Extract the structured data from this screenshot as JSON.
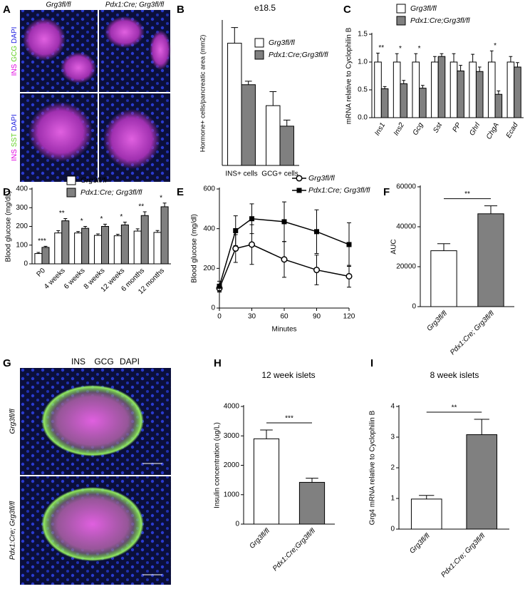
{
  "panel_letters": [
    "A",
    "B",
    "C",
    "D",
    "E",
    "F",
    "G",
    "H",
    "I"
  ],
  "figures": [
    {
      "columns": [
        "Grg3fl/fl",
        "Pdx1:Cre; Grg3fl/fl"
      ],
      "rows": [
        [
          "INS",
          "GCG",
          "DAPI"
        ],
        [
          "INS",
          "SST",
          "DAPI"
        ]
      ]
    },
    {
      "stains": [
        "INS",
        "GCG",
        "DAPI"
      ],
      "rows": [
        "Grg3fl/fl",
        "Pdx1:Cre; Grg3fl/fl"
      ]
    }
  ],
  "chart_data": [
    {
      "type": "bar",
      "title": "e18.5",
      "ylabel": "Hormone+ cells/pancreatic area (mm2)",
      "categories": [
        "INS+ cells",
        "GCG+ cells"
      ],
      "ylim": [
        0,
        330
      ],
      "series": [
        {
          "name": "Grg3fl/fl",
          "color": "#ffffff",
          "values": [
            280,
            137
          ],
          "errors": [
            36,
            32
          ]
        },
        {
          "name": "Pdx1:Cre;Grg3fl/fl",
          "color": "#808080",
          "values": [
            185,
            90
          ],
          "errors": [
            8,
            14
          ]
        }
      ]
    },
    {
      "type": "bar",
      "ylabel": "mRNA relative to Cyclophilin B",
      "categories": [
        "Ins1",
        "Ins2",
        "Gcg",
        "Sst",
        "PP",
        "Ghrl",
        "ChgA",
        "Ecad"
      ],
      "ylim": [
        0,
        1.5
      ],
      "yticks": [
        {
          "value": 0,
          "label": "0.0"
        },
        0.5,
        {
          "value": 1,
          "label": "1.0"
        },
        1.5
      ],
      "series": [
        {
          "name": "Grg3fl/fl",
          "color": "#ffffff",
          "values": [
            1.0,
            1.0,
            1.0,
            1.0,
            1.0,
            1.0,
            1.0,
            1.0
          ],
          "errors": [
            0.16,
            0.15,
            0.15,
            0.1,
            0.15,
            0.14,
            0.2,
            0.1
          ]
        },
        {
          "name": "Pdx1:Cre;Grg3fl/fl",
          "color": "#808080",
          "values": [
            0.52,
            0.61,
            0.53,
            1.1,
            0.84,
            0.83,
            0.42,
            0.91
          ],
          "errors": [
            0.04,
            0.06,
            0.05,
            0.05,
            0.1,
            0.08,
            0.06,
            0.08
          ]
        }
      ],
      "annotations": [
        "**",
        "*",
        "*",
        null,
        null,
        null,
        "*",
        null
      ]
    },
    {
      "type": "bar",
      "ylabel": "Blood glucose (mg/dL)",
      "categories": [
        "P0",
        "4 weeks",
        "6 weeks",
        "8 weeks",
        "12 weeks",
        "6 months",
        "12 months"
      ],
      "ylim": [
        0,
        400
      ],
      "yticks": [
        0,
        100,
        200,
        300,
        400
      ],
      "series": [
        {
          "name": "Grg3fl/fl",
          "color": "#ffffff",
          "values": [
            55,
            165,
            165,
            152,
            150,
            175,
            168
          ],
          "errors": [
            6,
            12,
            8,
            8,
            8,
            12,
            10
          ]
        },
        {
          "name": "Pdx1:Cre; Grg3fl/fl",
          "color": "#808080",
          "values": [
            88,
            230,
            190,
            200,
            208,
            258,
            305
          ],
          "errors": [
            6,
            12,
            10,
            12,
            15,
            20,
            20
          ]
        }
      ],
      "annotations": [
        "***",
        "**",
        "*",
        "*",
        "*",
        "**",
        "*"
      ]
    },
    {
      "type": "line",
      "ylabel": "Blood glucose (mg/dl)",
      "xlabel": "Minutes",
      "x": [
        0,
        15,
        30,
        60,
        90,
        120
      ],
      "xlim": [
        0,
        120
      ],
      "xticks": [
        0,
        30,
        60,
        90,
        120
      ],
      "ylim": [
        0,
        600
      ],
      "yticks": [
        0,
        200,
        400,
        600
      ],
      "series": [
        {
          "name": "Grg3fl/fl",
          "color": "#000000",
          "marker": "circle",
          "values": [
            100,
            300,
            320,
            245,
            192,
            160
          ],
          "errors": [
            20,
            70,
            100,
            90,
            75,
            55
          ]
        },
        {
          "name": "Pdx1:Cre; Grg3fl/fl",
          "color": "#000000",
          "marker": "square",
          "values": [
            110,
            390,
            450,
            435,
            385,
            320
          ],
          "errors": [
            25,
            75,
            75,
            100,
            110,
            110
          ]
        }
      ]
    },
    {
      "type": "bar",
      "ylabel": "AUC",
      "categories": [
        "Grg3fl/fl",
        "Pdx1:Cre; Grg3fl/fl"
      ],
      "ylim": [
        0,
        60000
      ],
      "yticks": [
        0,
        20000,
        40000,
        60000
      ],
      "series": [
        {
          "colors": [
            "#ffffff",
            "#808080"
          ],
          "values": [
            28000,
            46500
          ],
          "errors": [
            3500,
            4000
          ]
        }
      ],
      "bracket": "**"
    },
    {
      "type": "bar",
      "title": "12 week islets",
      "ylabel": "Insulin concentration (ug/L)",
      "categories": [
        "Grg3fl/fl",
        "Pdx1:Cre;Grg3fl/fl"
      ],
      "ylim": [
        0,
        4000
      ],
      "yticks": [
        0,
        1000,
        2000,
        3000,
        4000
      ],
      "series": [
        {
          "colors": [
            "#ffffff",
            "#808080"
          ],
          "values": [
            2900,
            1420
          ],
          "errors": [
            300,
            140
          ]
        }
      ],
      "bracket": "***"
    },
    {
      "type": "bar",
      "title": "8 week islets",
      "ylabel": "Grg4 mRNA relative to Cyclophilin B",
      "categories": [
        "Grg3fl/fl",
        "Pdx1:Cre; Grg3fl/fl"
      ],
      "ylim": [
        0,
        4
      ],
      "yticks": [
        0,
        1,
        2,
        3,
        4
      ],
      "series": [
        {
          "colors": [
            "#ffffff",
            "#808080"
          ],
          "values": [
            0.98,
            3.08
          ],
          "errors": [
            0.12,
            0.5
          ]
        }
      ],
      "bracket": "**"
    }
  ]
}
